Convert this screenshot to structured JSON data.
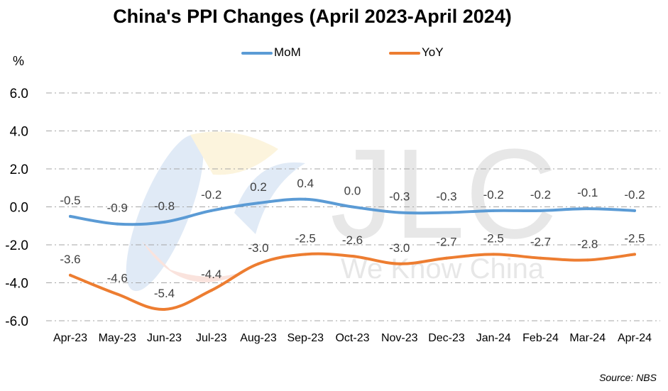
{
  "chart_data": {
    "type": "line",
    "title": "China's PPI Changes (April 2023-April 2024)",
    "ylabel": "%",
    "categories": [
      "Apr-23",
      "May-23",
      "Jun-23",
      "Jul-23",
      "Aug-23",
      "Sep-23",
      "Oct-23",
      "Nov-23",
      "Dec-23",
      "Jan-24",
      "Feb-24",
      "Mar-24",
      "Apr-24"
    ],
    "series": [
      {
        "name": "MoM",
        "color": "#5b9bd5",
        "values": [
          -0.5,
          -0.9,
          -0.8,
          -0.2,
          0.2,
          0.4,
          0.0,
          -0.3,
          -0.3,
          -0.2,
          -0.2,
          -0.1,
          -0.2
        ],
        "labels": [
          "-0.5",
          "-0.9",
          "-0.8",
          "-0.2",
          "0.2",
          "0.4",
          "0.0",
          "-0.3",
          "-0.3",
          "-0.2",
          "-0.2",
          "-0.1",
          "-0.2"
        ]
      },
      {
        "name": "YoY",
        "color": "#ed7d31",
        "values": [
          -3.6,
          -4.6,
          -5.4,
          -4.4,
          -3.0,
          -2.5,
          -2.6,
          -3.0,
          -2.7,
          -2.5,
          -2.7,
          -2.8,
          -2.5
        ],
        "labels": [
          "-3.6",
          "-4.6",
          "-5.4",
          "-4.4",
          "-3.0",
          "-2.5",
          "-2.6",
          "-3.0",
          "-2.7",
          "-2.5",
          "-2.7",
          "-2.8",
          "-2.5"
        ]
      }
    ],
    "ylim": [
      -6,
      6
    ],
    "yticks": [
      "6.0",
      "4.0",
      "2.0",
      "0.0",
      "-2.0",
      "-4.0",
      "-6.0"
    ],
    "grid": true,
    "legend": "top"
  },
  "source": "Source: NBS",
  "watermark": {
    "text": "JLC",
    "tagline": "We Know China"
  }
}
